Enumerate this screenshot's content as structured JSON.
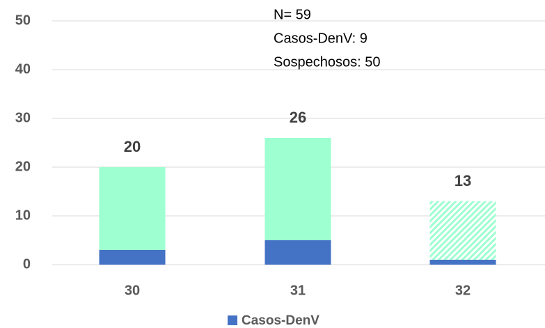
{
  "chart_data": {
    "type": "stacked_bar",
    "categories": [
      "30",
      "31",
      "32"
    ],
    "series": [
      {
        "name": "Casos-DenV",
        "color": "#4472c4",
        "values": [
          3,
          5,
          1
        ]
      },
      {
        "color": "#9effd0",
        "values": [
          17,
          21,
          12
        ]
      }
    ],
    "totals": [
      20,
      26,
      13
    ],
    "hatched": [
      false,
      false,
      true
    ],
    "annotations": [
      "N= 59",
      "Casos-DenV: 9",
      "Sospechosos: 50"
    ],
    "ylim": [
      0,
      50
    ],
    "yticks": [
      0,
      10,
      20,
      30,
      40,
      50
    ],
    "grid": true
  }
}
